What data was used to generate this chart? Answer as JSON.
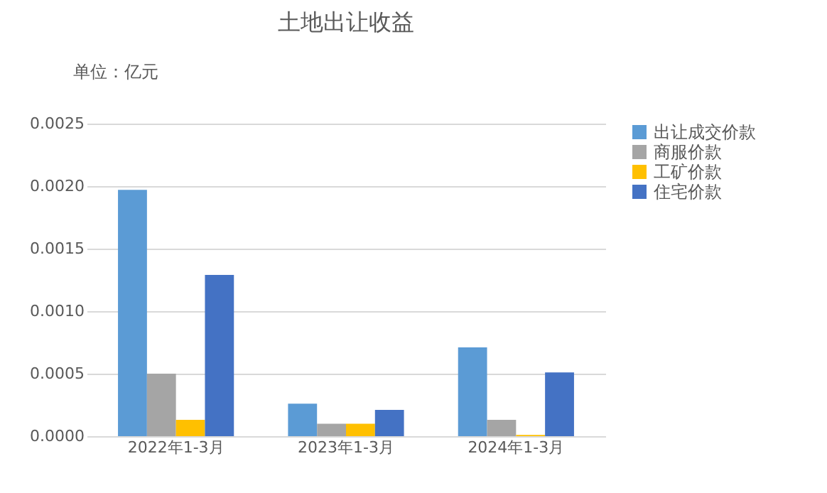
{
  "chart_data": {
    "type": "bar",
    "title": "土地出让收益",
    "ylabel": "单位：亿元",
    "categories": [
      "2022年1-3月",
      "2023年1-3月",
      "2024年1-3月"
    ],
    "series": [
      {
        "name": "出让成交价款",
        "color": "#5b9bd5",
        "values": [
          0.00197,
          0.00026,
          0.00071
        ]
      },
      {
        "name": "商服价款",
        "color": "#a5a5a5",
        "values": [
          0.0005,
          0.0001,
          0.00013
        ]
      },
      {
        "name": "工矿价款",
        "color": "#ffc000",
        "values": [
          0.00013,
          0.0001,
          1e-05
        ]
      },
      {
        "name": "住宅价款",
        "color": "#4472c4",
        "values": [
          0.00129,
          0.00021,
          0.00051
        ]
      }
    ],
    "ylim": [
      0,
      0.0025
    ],
    "yticks": [
      {
        "value": 0,
        "label": "0.0000"
      },
      0.0005,
      {
        "value": 0.001,
        "label": "0.0010"
      },
      0.0015,
      {
        "value": 0.002,
        "label": "0.0020"
      },
      0.0025
    ],
    "grid": "y",
    "legend": "right"
  }
}
